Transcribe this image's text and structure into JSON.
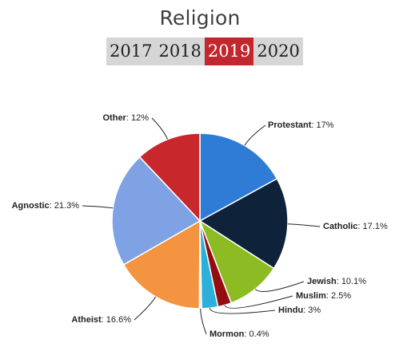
{
  "page": {
    "title": "Religion"
  },
  "year_tabs": {
    "items": [
      {
        "label": "2017",
        "active": false
      },
      {
        "label": "2018",
        "active": false
      },
      {
        "label": "2019",
        "active": true
      },
      {
        "label": "2020",
        "active": false
      }
    ],
    "active_color": "#c1272d"
  },
  "chart_data": {
    "type": "pie",
    "title": "",
    "slices": [
      {
        "label": "Protestant",
        "value": 17,
        "display": "17%",
        "color": "#2e7cd6"
      },
      {
        "label": "Catholic",
        "value": 17.1,
        "display": "17.1%",
        "color": "#0e2239"
      },
      {
        "label": "Jewish",
        "value": 10.1,
        "display": "10.1%",
        "color": "#8cbb24"
      },
      {
        "label": "Muslim",
        "value": 2.5,
        "display": "2.5%",
        "color": "#940d10"
      },
      {
        "label": "Hindu",
        "value": 3,
        "display": "3%",
        "color": "#2cb0d9"
      },
      {
        "label": "Mormon",
        "value": 0.4,
        "display": "0.4%",
        "color": "#ececec"
      },
      {
        "label": "Atheist",
        "value": 16.6,
        "display": "16.6%",
        "color": "#f49340"
      },
      {
        "label": "Agnostic",
        "value": 21.3,
        "display": "21.3%",
        "color": "#7ea2e3"
      },
      {
        "label": "Other",
        "value": 12,
        "display": "12%",
        "color": "#c8282b"
      }
    ]
  }
}
